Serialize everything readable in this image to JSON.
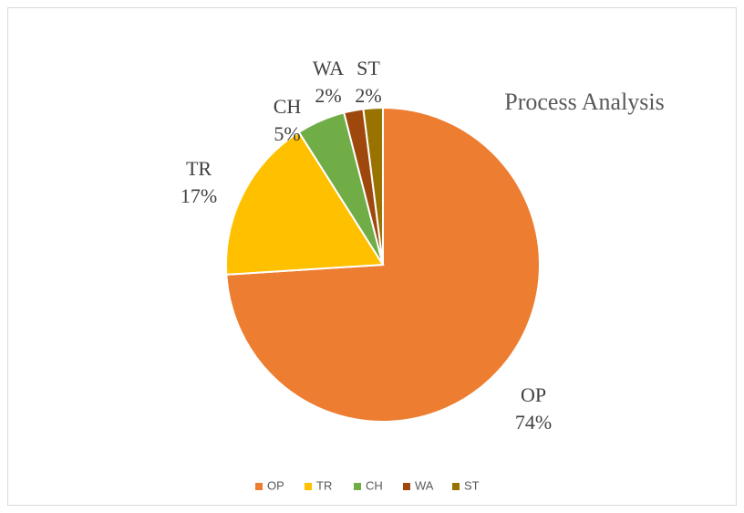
{
  "chart_data": {
    "type": "pie",
    "title": "Process Analysis",
    "categories": [
      "OP",
      "TR",
      "CH",
      "WA",
      "ST"
    ],
    "values": [
      74,
      17,
      5,
      2,
      2
    ],
    "value_labels": [
      "74%",
      "17%",
      "5%",
      "2%",
      "2%"
    ],
    "colors": [
      "#ed7d31",
      "#ffc000",
      "#70ad47",
      "#9e480e",
      "#997300"
    ],
    "legend": "bottom"
  }
}
